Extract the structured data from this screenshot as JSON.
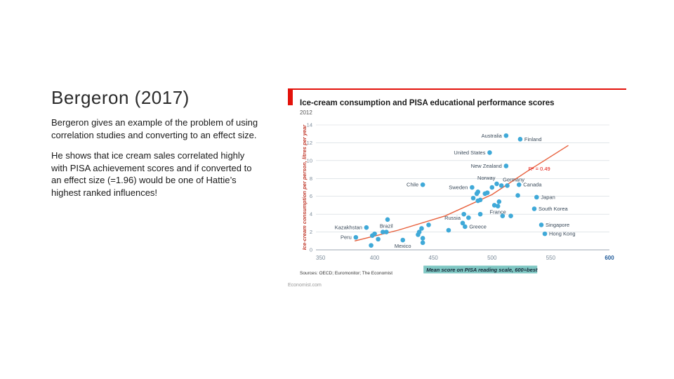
{
  "slide": {
    "title": "Bergeron (2017)",
    "paragraphs": [
      "Bergeron gives an example of the problem of using correlation studies and converting to an effect size.",
      "He shows that ice cream sales correlated highly with PISA achievement scores and if converted to an effect size (=1.96) would be one of Hattie’s highest ranked influences!"
    ]
  },
  "colors": {
    "accent_red": "#e3120b",
    "point_blue": "#3fa9d8",
    "label_dark": "#3a4a5a",
    "xlabel_bg": "#7fc7c3",
    "grid": "#cfd6dc"
  },
  "chart_data": {
    "type": "scatter",
    "title": "Ice-cream consumption and PISA educational performance scores",
    "subtitle": "2012",
    "xlabel": "Mean score on PISA reading scale, 600=best",
    "ylabel": "Ice-cream consumption per person, litres per year",
    "xlim": [
      350,
      600
    ],
    "ylim": [
      0,
      14
    ],
    "xticks": [
      "350",
      "400",
      "450",
      "500",
      "550",
      "600"
    ],
    "yticks": [
      "0",
      "2",
      "4",
      "6",
      "8",
      "10",
      "12",
      "14"
    ],
    "r2_label": "R² = 0.49",
    "source": "Sources: OECD; Euromonitor; The Economist",
    "credit": "Economist.com",
    "trend": [
      [
        383,
        1.0
      ],
      [
        420,
        2.2
      ],
      [
        460,
        3.8
      ],
      [
        500,
        6.2
      ],
      [
        530,
        8.8
      ],
      [
        565,
        11.7
      ]
    ],
    "labeled_points": [
      {
        "name": "Australia",
        "x": 512,
        "y": 12.8
      },
      {
        "name": "Finland",
        "x": 524,
        "y": 12.4
      },
      {
        "name": "United States",
        "x": 498,
        "y": 10.9
      },
      {
        "name": "New Zealand",
        "x": 512,
        "y": 9.4
      },
      {
        "name": "Norway",
        "x": 504,
        "y": 7.4
      },
      {
        "name": "Germany",
        "x": 508,
        "y": 7.2
      },
      {
        "name": "Canada",
        "x": 523,
        "y": 7.3
      },
      {
        "name": "Chile",
        "x": 441,
        "y": 7.3
      },
      {
        "name": "Sweden",
        "x": 483,
        "y": 7.0
      },
      {
        "name": "Japan",
        "x": 538,
        "y": 5.9
      },
      {
        "name": "South Korea",
        "x": 536,
        "y": 4.6
      },
      {
        "name": "France",
        "x": 505,
        "y": 4.9
      },
      {
        "name": "Singapore",
        "x": 542,
        "y": 2.8
      },
      {
        "name": "Hong Kong",
        "x": 545,
        "y": 1.8
      },
      {
        "name": "Russia",
        "x": 475,
        "y": 3.0
      },
      {
        "name": "Greece",
        "x": 477,
        "y": 2.6
      },
      {
        "name": "Kazakhstan",
        "x": 393,
        "y": 2.5
      },
      {
        "name": "Brazil",
        "x": 410,
        "y": 2.0
      },
      {
        "name": "Peru",
        "x": 384,
        "y": 1.4
      },
      {
        "name": "Mexico",
        "x": 424,
        "y": 1.1
      }
    ],
    "other_points": [
      [
        397,
        0.5
      ],
      [
        398,
        1.6
      ],
      [
        400,
        1.8
      ],
      [
        403,
        1.2
      ],
      [
        407,
        2.0
      ],
      [
        411,
        3.4
      ],
      [
        437,
        1.7
      ],
      [
        438,
        2.0
      ],
      [
        440,
        2.4
      ],
      [
        441,
        0.8
      ],
      [
        441,
        1.3
      ],
      [
        446,
        2.8
      ],
      [
        463,
        2.2
      ],
      [
        476,
        4.0
      ],
      [
        480,
        3.6
      ],
      [
        484,
        5.8
      ],
      [
        487,
        6.3
      ],
      [
        488,
        6.5
      ],
      [
        488,
        5.5
      ],
      [
        490,
        5.6
      ],
      [
        490,
        4.0
      ],
      [
        494,
        6.3
      ],
      [
        496,
        6.4
      ],
      [
        500,
        7.0
      ],
      [
        502,
        5.0
      ],
      [
        506,
        5.4
      ],
      [
        509,
        3.8
      ],
      [
        513,
        7.2
      ],
      [
        516,
        3.8
      ],
      [
        522,
        6.1
      ]
    ]
  }
}
